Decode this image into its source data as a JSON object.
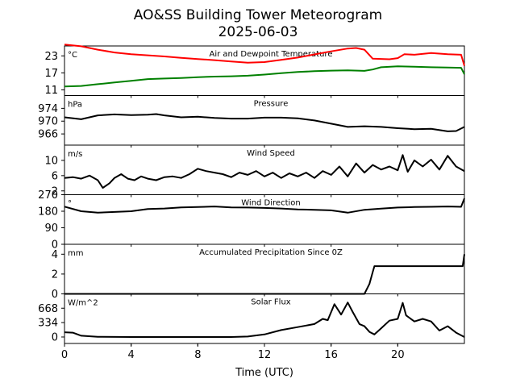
{
  "figure": {
    "title_line1": "AO&SS Building Tower Meteorogram",
    "title_line2": "2025-06-03",
    "xlabel": "Time (UTC)"
  },
  "chart_data": {
    "type": "line",
    "x_ticks": [
      0,
      4,
      8,
      12,
      16,
      20
    ],
    "x_range": [
      0,
      24
    ],
    "panels": [
      {
        "id": "temp",
        "title": "Air and Dewpoint Temperature",
        "unit": "°C",
        "ylim": [
          9,
          26.5
        ],
        "yticks": [
          11,
          17,
          23
        ],
        "series": [
          {
            "color": "#ff0000",
            "points": [
              [
                0,
                27
              ],
              [
                1,
                26.4
              ],
              [
                2,
                25.2
              ],
              [
                3,
                24.2
              ],
              [
                4,
                23.6
              ],
              [
                5,
                23.2
              ],
              [
                6,
                22.8
              ],
              [
                7,
                22.3
              ],
              [
                8,
                21.9
              ],
              [
                9,
                21.5
              ],
              [
                10,
                21
              ],
              [
                11,
                20.6
              ],
              [
                12,
                20.8
              ],
              [
                13,
                21.6
              ],
              [
                14,
                22.4
              ],
              [
                15,
                23.5
              ],
              [
                16,
                24.6
              ],
              [
                17,
                25.6
              ],
              [
                17.5,
                25.8
              ],
              [
                18,
                25.2
              ],
              [
                18.5,
                22
              ],
              [
                19.5,
                21.8
              ],
              [
                20,
                22.2
              ],
              [
                20.4,
                23.6
              ],
              [
                21,
                23.4
              ],
              [
                22,
                24
              ],
              [
                23,
                23.6
              ],
              [
                23.8,
                23.4
              ],
              [
                24,
                19.5
              ]
            ]
          },
          {
            "color": "#008000",
            "points": [
              [
                0,
                12.2
              ],
              [
                1,
                12.4
              ],
              [
                2,
                13
              ],
              [
                3,
                13.6
              ],
              [
                4,
                14.2
              ],
              [
                5,
                14.8
              ],
              [
                6,
                15
              ],
              [
                7,
                15.2
              ],
              [
                8,
                15.5
              ],
              [
                9,
                15.7
              ],
              [
                10,
                15.8
              ],
              [
                11,
                16
              ],
              [
                12,
                16.4
              ],
              [
                13,
                16.9
              ],
              [
                14,
                17.3
              ],
              [
                15,
                17.6
              ],
              [
                16,
                17.8
              ],
              [
                17,
                17.9
              ],
              [
                18,
                17.7
              ],
              [
                18.5,
                18.2
              ],
              [
                19,
                19
              ],
              [
                20,
                19.3
              ],
              [
                21,
                19.2
              ],
              [
                22,
                19
              ],
              [
                23,
                18.9
              ],
              [
                23.8,
                18.8
              ],
              [
                24,
                16.5
              ]
            ]
          }
        ]
      },
      {
        "id": "pres",
        "title": "Pressure",
        "unit": "hPa",
        "ylim": [
          962.5,
          978
        ],
        "yticks": [
          966,
          970,
          974
        ],
        "series": [
          {
            "color": "#000000",
            "points": [
              [
                0,
                971.2
              ],
              [
                1,
                970.6
              ],
              [
                2,
                971.8
              ],
              [
                3,
                972.1
              ],
              [
                4,
                971.9
              ],
              [
                5,
                972
              ],
              [
                5.5,
                972.2
              ],
              [
                6,
                971.8
              ],
              [
                7,
                971.2
              ],
              [
                8,
                971.4
              ],
              [
                9,
                971
              ],
              [
                10,
                970.8
              ],
              [
                11,
                970.8
              ],
              [
                12,
                971.1
              ],
              [
                13,
                971.1
              ],
              [
                14,
                970.9
              ],
              [
                15,
                970.2
              ],
              [
                16,
                969.2
              ],
              [
                17,
                968.2
              ],
              [
                18,
                968.4
              ],
              [
                19,
                968.2
              ],
              [
                20,
                967.8
              ],
              [
                21,
                967.5
              ],
              [
                22,
                967.6
              ],
              [
                23,
                966.8
              ],
              [
                23.5,
                966.9
              ],
              [
                24,
                968.2
              ]
            ]
          }
        ]
      },
      {
        "id": "wspd",
        "title": "Wind Speed",
        "unit": "m/s",
        "ylim": [
          1,
          14
        ],
        "yticks": [
          2,
          6,
          10
        ],
        "series": [
          {
            "color": "#000000",
            "points": [
              [
                0,
                5.4
              ],
              [
                0.5,
                5.6
              ],
              [
                1,
                5.2
              ],
              [
                1.5,
                6
              ],
              [
                2,
                4.8
              ],
              [
                2.3,
                2.8
              ],
              [
                2.7,
                4
              ],
              [
                3,
                5.4
              ],
              [
                3.4,
                6.4
              ],
              [
                3.8,
                5.2
              ],
              [
                4.2,
                4.8
              ],
              [
                4.6,
                5.8
              ],
              [
                5,
                5.2
              ],
              [
                5.5,
                4.8
              ],
              [
                6,
                5.6
              ],
              [
                6.5,
                5.8
              ],
              [
                7,
                5.4
              ],
              [
                7.5,
                6.4
              ],
              [
                8,
                7.8
              ],
              [
                8.5,
                7.2
              ],
              [
                9,
                6.8
              ],
              [
                9.5,
                6.4
              ],
              [
                10,
                5.6
              ],
              [
                10.5,
                6.8
              ],
              [
                11,
                6.2
              ],
              [
                11.5,
                7.2
              ],
              [
                12,
                5.8
              ],
              [
                12.5,
                6.8
              ],
              [
                13,
                5.4
              ],
              [
                13.5,
                6.6
              ],
              [
                14,
                5.8
              ],
              [
                14.5,
                6.8
              ],
              [
                15,
                5.4
              ],
              [
                15.5,
                7.2
              ],
              [
                16,
                6.2
              ],
              [
                16.5,
                8.4
              ],
              [
                17,
                5.8
              ],
              [
                17.5,
                9.2
              ],
              [
                18,
                6.8
              ],
              [
                18.5,
                8.8
              ],
              [
                19,
                7.6
              ],
              [
                19.5,
                8.4
              ],
              [
                20,
                7.4
              ],
              [
                20.3,
                11.4
              ],
              [
                20.6,
                7
              ],
              [
                21,
                10
              ],
              [
                21.5,
                8.4
              ],
              [
                22,
                10.2
              ],
              [
                22.5,
                7.6
              ],
              [
                23,
                11.2
              ],
              [
                23.5,
                8.4
              ],
              [
                24,
                7.2
              ]
            ]
          }
        ]
      },
      {
        "id": "wdir",
        "title": "Wind Direction",
        "unit": "°",
        "ylim": [
          0,
          270
        ],
        "yticks": [
          0,
          90,
          180,
          270
        ],
        "series": [
          {
            "color": "#000000",
            "points": [
              [
                0,
                205
              ],
              [
                1,
                180
              ],
              [
                2,
                172
              ],
              [
                3,
                176
              ],
              [
                4,
                180
              ],
              [
                5,
                192
              ],
              [
                6,
                195
              ],
              [
                7,
                201
              ],
              [
                8,
                203
              ],
              [
                9,
                206
              ],
              [
                10,
                201
              ],
              [
                11,
                200
              ],
              [
                12,
                198
              ],
              [
                13,
                195
              ],
              [
                14,
                190
              ],
              [
                15,
                188
              ],
              [
                16,
                185
              ],
              [
                17,
                172
              ],
              [
                18,
                188
              ],
              [
                19,
                194
              ],
              [
                20,
                200
              ],
              [
                21,
                203
              ],
              [
                22,
                204
              ],
              [
                23,
                206
              ],
              [
                23.8,
                204
              ],
              [
                24,
                250
              ]
            ]
          }
        ]
      },
      {
        "id": "precip",
        "title": "Accumulated Precipitation Since 0Z",
        "unit": "mm",
        "ylim": [
          0,
          5
        ],
        "yticks": [
          0,
          2,
          4
        ],
        "series": [
          {
            "color": "#000000",
            "points": [
              [
                0,
                0
              ],
              [
                18,
                0
              ],
              [
                18.3,
                1.0
              ],
              [
                18.5,
                2.2
              ],
              [
                18.6,
                2.8
              ],
              [
                23.9,
                2.8
              ],
              [
                24,
                4.0
              ]
            ]
          }
        ]
      },
      {
        "id": "solar",
        "title": "Solar Flux",
        "unit": "W/m^2",
        "ylim": [
          -150,
          1000
        ],
        "yticks": [
          0,
          334,
          668
        ],
        "series": [
          {
            "color": "#000000",
            "points": [
              [
                0,
                110
              ],
              [
                0.5,
                100
              ],
              [
                1,
                30
              ],
              [
                2,
                5
              ],
              [
                4,
                0
              ],
              [
                8,
                0
              ],
              [
                10,
                0
              ],
              [
                11,
                10
              ],
              [
                12,
                60
              ],
              [
                13,
                160
              ],
              [
                14,
                230
              ],
              [
                15,
                300
              ],
              [
                15.5,
                420
              ],
              [
                15.8,
                390
              ],
              [
                16.2,
                760
              ],
              [
                16.6,
                520
              ],
              [
                17,
                800
              ],
              [
                17.3,
                580
              ],
              [
                17.7,
                300
              ],
              [
                18,
                250
              ],
              [
                18.3,
                120
              ],
              [
                18.6,
                60
              ],
              [
                19,
                200
              ],
              [
                19.5,
                380
              ],
              [
                20,
                420
              ],
              [
                20.3,
                790
              ],
              [
                20.5,
                500
              ],
              [
                21,
                360
              ],
              [
                21.5,
                420
              ],
              [
                22,
                360
              ],
              [
                22.5,
                150
              ],
              [
                23,
                250
              ],
              [
                23.5,
                100
              ],
              [
                24,
                0
              ]
            ]
          }
        ]
      }
    ]
  }
}
